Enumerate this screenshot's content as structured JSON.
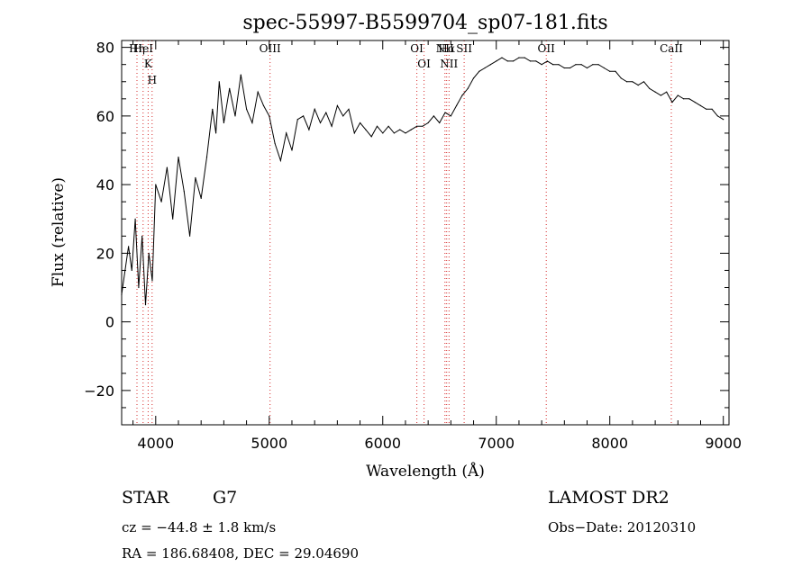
{
  "chart_data": {
    "type": "line",
    "title": "spec-55997-B5599704_sp07-181.fits",
    "xlabel": "Wavelength (Å)",
    "ylabel": "Flux (relative)",
    "xlim": [
      3700,
      9050
    ],
    "ylim": [
      -30,
      82
    ],
    "x_ticks": [
      4000,
      5000,
      6000,
      7000,
      8000,
      9000
    ],
    "y_ticks": [
      -20,
      0,
      20,
      40,
      60,
      80
    ],
    "grid": false,
    "series": [
      {
        "x": [
          3700,
          3760,
          3790,
          3820,
          3850,
          3880,
          3910,
          3940,
          3970,
          4000,
          4050,
          4100,
          4150,
          4200,
          4250,
          4300,
          4350,
          4400,
          4450,
          4500,
          4530,
          4560,
          4600,
          4650,
          4700,
          4750,
          4800,
          4850,
          4900,
          4950,
          5000,
          5050,
          5100,
          5150,
          5200,
          5250,
          5300,
          5350,
          5400,
          5450,
          5500,
          5550,
          5600,
          5650,
          5700,
          5750,
          5800,
          5850,
          5900,
          5950,
          6000,
          6050,
          6100,
          6150,
          6200,
          6250,
          6300,
          6350,
          6400,
          6450,
          6500,
          6550,
          6600,
          6650,
          6700,
          6750,
          6800,
          6850,
          6900,
          6950,
          7000,
          7050,
          7100,
          7150,
          7200,
          7250,
          7300,
          7350,
          7400,
          7450,
          7500,
          7550,
          7600,
          7650,
          7700,
          7750,
          7800,
          7850,
          7900,
          7950,
          8000,
          8050,
          8100,
          8150,
          8200,
          8250,
          8300,
          8350,
          8400,
          8450,
          8500,
          8550,
          8600,
          8650,
          8700,
          8750,
          8800,
          8850,
          8900,
          8950,
          9000
        ],
        "values": [
          8,
          22,
          15,
          30,
          10,
          25,
          5,
          20,
          12,
          40,
          35,
          45,
          30,
          48,
          38,
          25,
          42,
          36,
          48,
          62,
          55,
          70,
          58,
          68,
          60,
          72,
          62,
          58,
          67,
          63,
          60,
          52,
          47,
          55,
          50,
          59,
          60,
          56,
          62,
          58,
          61,
          57,
          63,
          60,
          62,
          55,
          58,
          56,
          54,
          57,
          55,
          57,
          55,
          56,
          55,
          56,
          57,
          57,
          58,
          60,
          58,
          61,
          60,
          63,
          66,
          68,
          71,
          73,
          74,
          75,
          76,
          77,
          76,
          76,
          77,
          77,
          76,
          76,
          75,
          76,
          75,
          75,
          74,
          74,
          75,
          75,
          74,
          75,
          75,
          74,
          73,
          73,
          71,
          70,
          70,
          69,
          70,
          68,
          67,
          66,
          67,
          64,
          66,
          65,
          65,
          64,
          63,
          62,
          62,
          60,
          59
        ]
      }
    ],
    "line_markers": [
      {
        "x": 3835,
        "label": "Hη"
      },
      {
        "x": 3889,
        "label": "HeI"
      },
      {
        "x": 3933,
        "label": "K"
      },
      {
        "x": 3968,
        "label": "H"
      },
      {
        "x": 5007,
        "label": "OIII"
      },
      {
        "x": 6300,
        "label": "OI"
      },
      {
        "x": 6364,
        "label": "OI"
      },
      {
        "x": 6548,
        "label": "NII"
      },
      {
        "x": 6563,
        "label": "Hα"
      },
      {
        "x": 6584,
        "label": "NII"
      },
      {
        "x": 6717,
        "label": "SII"
      },
      {
        "x": 7440,
        "label": "OII"
      },
      {
        "x": 8542,
        "label": "CaII"
      }
    ]
  },
  "info": {
    "object_class": "STAR",
    "subclass": "G7",
    "survey": "LAMOST DR2",
    "redshift": "cz = −44.8 ± 1.8 km/s",
    "obs_date": "Obs−Date: 20120310",
    "coords": "RA = 186.68408, DEC =  29.04690"
  },
  "colors": {
    "spectrum": "#000000",
    "marker_lines": "#d62828",
    "axes": "#000000"
  }
}
